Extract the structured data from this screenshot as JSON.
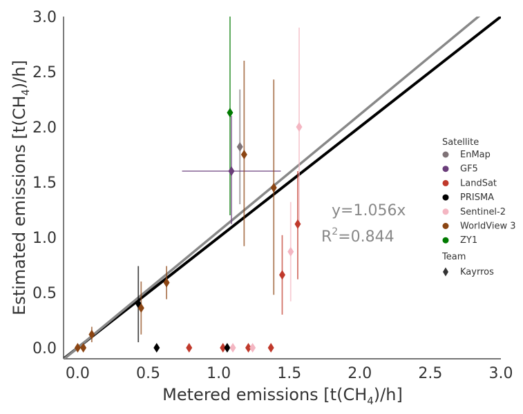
{
  "chart_data": {
    "type": "scatter",
    "xlabel_main": "Metered emissions [t(CH",
    "xlabel_sub": "4",
    "xlabel_end": ")/h]",
    "ylabel_main": "Estimated emissions [t(CH",
    "ylabel_sub": "4",
    "ylabel_end": ")/h]",
    "xlim": [
      -0.1,
      3.0
    ],
    "ylim": [
      -0.1,
      3.0
    ],
    "xticks": [
      0.0,
      0.5,
      1.0,
      1.5,
      2.0,
      2.5,
      3.0
    ],
    "yticks": [
      0.0,
      0.5,
      1.0,
      1.5,
      2.0,
      2.5,
      3.0
    ],
    "xtick_labels": [
      "0.0",
      "0.5",
      "1.0",
      "1.5",
      "2.0",
      "2.5",
      "3.0"
    ],
    "ytick_labels": [
      "0.0",
      "0.5",
      "1.0",
      "1.5",
      "2.0",
      "2.5",
      "3.0"
    ],
    "grid": false,
    "lines": [
      {
        "name": "identity",
        "slope": 1.0,
        "color": "#000000"
      },
      {
        "name": "fit",
        "slope": 1.056,
        "color": "#888888"
      }
    ],
    "annotation_fit": "y=1.056x",
    "annotation_r2_prefix": "R",
    "annotation_r2_sup": "2",
    "annotation_r2_value": "=0.844",
    "legend_title_satellite": "Satellite",
    "legend_title_team": "Team",
    "legend_position": "right",
    "series": [
      {
        "name": "EnMap",
        "color": "#7f7377",
        "points": [
          {
            "x": 1.15,
            "y": 1.82,
            "ylo": 1.3,
            "yhi": 2.34
          }
        ]
      },
      {
        "name": "GF5",
        "color": "#6a3d7a",
        "points": [
          {
            "x": 1.09,
            "y": 1.6,
            "ylo": 1.12,
            "yhi": 2.1,
            "xlo": 0.74,
            "xhi": 1.44
          }
        ]
      },
      {
        "name": "LandSat",
        "color": "#c0392b",
        "points": [
          {
            "x": 1.45,
            "y": 0.66,
            "ylo": 0.3,
            "yhi": 1.02
          },
          {
            "x": 1.56,
            "y": 1.12,
            "ylo": 0.62,
            "yhi": 1.6
          },
          {
            "x": 0.79,
            "y": 0.0
          },
          {
            "x": 1.03,
            "y": 0.0
          },
          {
            "x": 1.21,
            "y": 0.0
          },
          {
            "x": 1.37,
            "y": 0.0
          }
        ]
      },
      {
        "name": "PRISMA",
        "color": "#000000",
        "points": [
          {
            "x": 0.43,
            "y": 0.4,
            "ylo": 0.05,
            "yhi": 0.74
          },
          {
            "x": 0.56,
            "y": 0.0
          },
          {
            "x": 1.06,
            "y": 0.0
          }
        ]
      },
      {
        "name": "Sentinel-2",
        "color": "#f4b6c2",
        "points": [
          {
            "x": 1.57,
            "y": 2.0,
            "ylo": 1.1,
            "yhi": 2.9
          },
          {
            "x": 1.51,
            "y": 0.87,
            "ylo": 0.42,
            "yhi": 1.32
          },
          {
            "x": 1.1,
            "y": 0.0
          },
          {
            "x": 1.24,
            "y": 0.0
          }
        ]
      },
      {
        "name": "WorldView 3",
        "color": "#8b4513",
        "points": [
          {
            "x": 0.1,
            "y": 0.12,
            "ylo": 0.05,
            "yhi": 0.19
          },
          {
            "x": 0.45,
            "y": 0.36,
            "ylo": 0.12,
            "yhi": 0.6
          },
          {
            "x": 0.63,
            "y": 0.59,
            "ylo": 0.44,
            "yhi": 0.74
          },
          {
            "x": 1.18,
            "y": 1.75,
            "ylo": 0.92,
            "yhi": 2.6
          },
          {
            "x": 1.39,
            "y": 1.45,
            "ylo": 0.48,
            "yhi": 2.43
          },
          {
            "x": 0.0,
            "y": 0.0
          },
          {
            "x": 0.04,
            "y": 0.0
          }
        ]
      },
      {
        "name": "ZY1",
        "color": "#007a00",
        "points": [
          {
            "x": 1.08,
            "y": 2.13,
            "ylo": 1.2,
            "yhi": 3.0
          }
        ]
      }
    ],
    "team_legend": [
      {
        "name": "Kayrros",
        "color": "#333333"
      }
    ]
  }
}
